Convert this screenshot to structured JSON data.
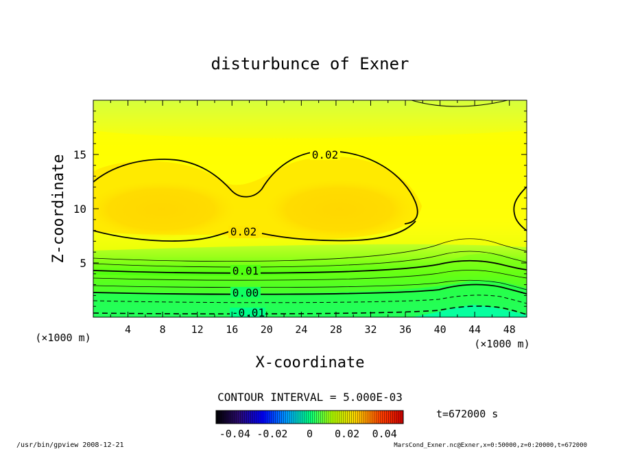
{
  "chart_data": {
    "type": "heatmap",
    "title": "disturbunce of Exner",
    "xlabel": "X-coordinate",
    "ylabel": "Z-coordinate",
    "x_unit_label": "(×1000 m)",
    "y_unit_label": "(×1000 m)",
    "xlim": [
      0,
      50
    ],
    "ylim": [
      0,
      20
    ],
    "x_ticks": [
      "4",
      "8",
      "12",
      "16",
      "20",
      "24",
      "28",
      "32",
      "36",
      "40",
      "44",
      "48"
    ],
    "y_ticks": [
      "5",
      "10",
      "15"
    ],
    "contour_labels": [
      "0.02",
      "0.02",
      "0.01",
      "0.00",
      "-0.01"
    ],
    "contour_interval_text": "CONTOUR INTERVAL = 5.000E-03",
    "colorbar_labels": [
      "-0.04",
      "-0.02",
      "0",
      "0.02",
      "0.04"
    ],
    "colorbar_range": [
      -0.05,
      0.05
    ],
    "time_label": "t=672000 s",
    "grid": false,
    "colors": {
      "max_region": "#ffd700",
      "mid_region": "#ffff00",
      "low_region": "#00ff7f",
      "min_region": "#00ffa0"
    }
  },
  "footer": {
    "left": "/usr/bin/gpview   2008-12-21",
    "right": "MarsCond_Exner.nc@Exner,x=0:50000,z=0:20000,t=672000"
  }
}
